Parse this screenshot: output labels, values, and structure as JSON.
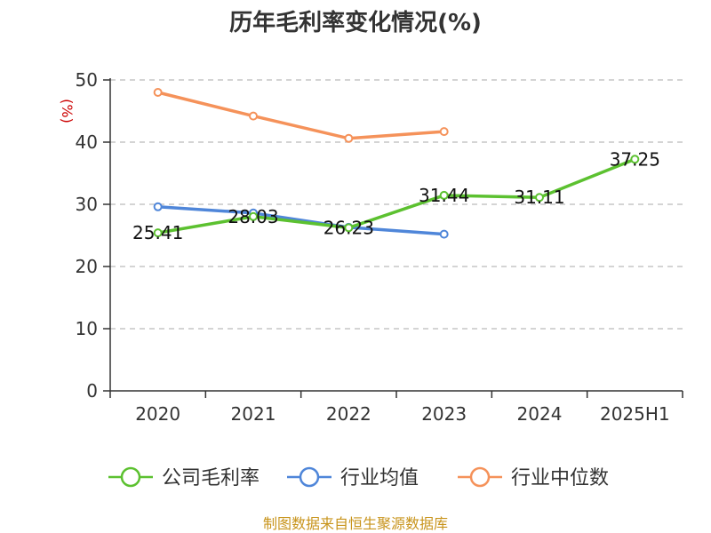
{
  "chart_data": {
    "type": "line",
    "title": "历年毛利率变化情况(%)",
    "ylabel": "(%)",
    "categories": [
      "2020",
      "2021",
      "2022",
      "2023",
      "2024",
      "2025H1"
    ],
    "ylim": [
      0,
      50
    ],
    "yticks": [
      0,
      10,
      20,
      30,
      40,
      50
    ],
    "grid": true,
    "legend_position": "bottom",
    "series": [
      {
        "name": "公司毛利率",
        "color": "#5cc130",
        "values": [
          25.41,
          28.03,
          26.23,
          31.44,
          31.11,
          37.25
        ],
        "labels": [
          "25.41",
          "28.03",
          "26.23",
          "31.44",
          "31.11",
          "37.25"
        ]
      },
      {
        "name": "行业均值",
        "color": "#4f86d9",
        "values": [
          29.6,
          28.6,
          26.3,
          25.2,
          null,
          null
        ]
      },
      {
        "name": "行业中位数",
        "color": "#f5925a",
        "values": [
          48.0,
          44.2,
          40.6,
          41.7,
          null,
          null
        ]
      }
    ]
  },
  "footer": {
    "source": "制图数据来自恒生聚源数据库"
  }
}
